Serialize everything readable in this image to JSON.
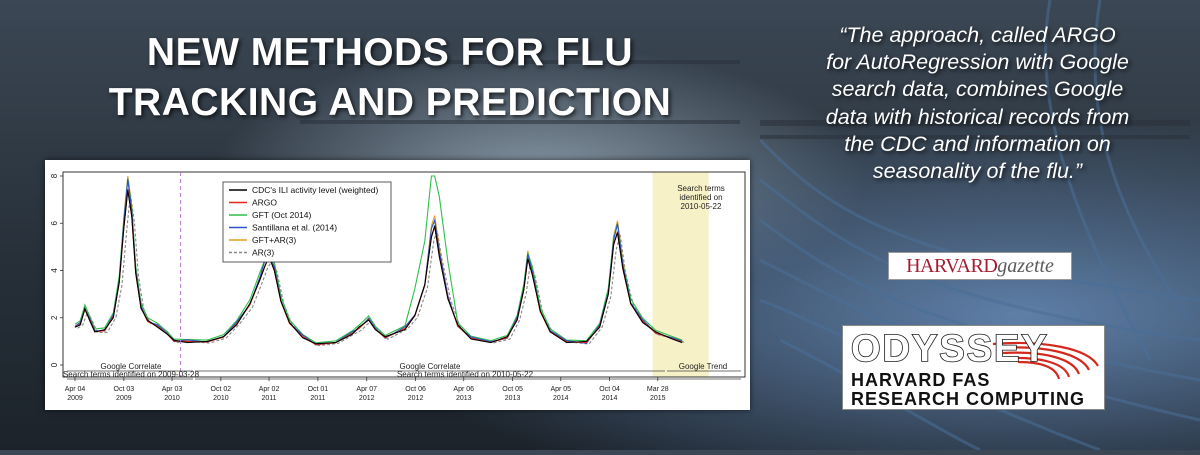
{
  "headline": [
    "NEW METHODS FOR FLU",
    "TRACKING AND PREDICTION"
  ],
  "quote": [
    "“The approach, called ARGO",
    "for AutoRegression with Google",
    "search data, combines Google",
    "data with historical records from",
    "the CDC and information on",
    "seasonality of the flu.”"
  ],
  "logos": {
    "harvard_gazette": {
      "part1": "HARVARD",
      "part2": "gazette"
    },
    "odyssey": {
      "title": "ODYSSEY",
      "line1": "HARVARD FAS",
      "line2": "RESEARCH COMPUTING"
    }
  },
  "colors": {
    "cdc": "#000000",
    "argo": "#e8231b",
    "gft": "#2fbf4a",
    "santillana": "#2a55c8",
    "gftar": "#e0a020",
    "ar": "#888888",
    "highlight": "#f7f1c8",
    "divider": "#b07ad0"
  },
  "chart_data": {
    "type": "line",
    "ylim": [
      0,
      8
    ],
    "yticks": [
      "0",
      "2",
      "4",
      "6",
      "8"
    ],
    "x_ticks": [
      {
        "label1": "Apr 04",
        "label2": "2009",
        "pos": 0.0
      },
      {
        "label1": "Oct 03",
        "label2": "2009",
        "pos": 0.074
      },
      {
        "label1": "Apr 03",
        "label2": "2010",
        "pos": 0.147
      },
      {
        "label1": "Oct 02",
        "label2": "2010",
        "pos": 0.221
      },
      {
        "label1": "Apr 02",
        "label2": "2011",
        "pos": 0.294
      },
      {
        "label1": "Oct 01",
        "label2": "2011",
        "pos": 0.368
      },
      {
        "label1": "Apr 07",
        "label2": "2012",
        "pos": 0.442
      },
      {
        "label1": "Oct 06",
        "label2": "2012",
        "pos": 0.516
      },
      {
        "label1": "Apr 06",
        "label2": "2013",
        "pos": 0.589
      },
      {
        "label1": "Oct 05",
        "label2": "2013",
        "pos": 0.663
      },
      {
        "label1": "Apr 05",
        "label2": "2014",
        "pos": 0.736
      },
      {
        "label1": "Oct 04",
        "label2": "2014",
        "pos": 0.81
      },
      {
        "label1": "Mar 28",
        "label2": "2015",
        "pos": 0.883
      }
    ],
    "legend": [
      "CDC's ILI activity level (weighted)",
      "ARGO",
      "GFT (Oct 2014)",
      "Santillana et al. (2014)",
      "GFT+AR(3)",
      "AR(3)"
    ],
    "annotations": {
      "search_box": [
        "Search terms",
        "identified on",
        "2010-05-22"
      ],
      "correlate_1": "Google Correlate",
      "correlate_2": "Google Correlate",
      "trend": "Google Trend",
      "terms_1": "Search terms identified on 2009-03-28",
      "terms_2": "Search terms identified on 2010-05-22"
    },
    "cdc_series": [
      [
        0.0,
        1.6
      ],
      [
        0.008,
        1.7
      ],
      [
        0.015,
        2.4
      ],
      [
        0.022,
        1.9
      ],
      [
        0.03,
        1.4
      ],
      [
        0.045,
        1.5
      ],
      [
        0.058,
        2.0
      ],
      [
        0.067,
        3.5
      ],
      [
        0.074,
        5.8
      ],
      [
        0.08,
        7.4
      ],
      [
        0.086,
        6.3
      ],
      [
        0.092,
        3.9
      ],
      [
        0.1,
        2.4
      ],
      [
        0.11,
        1.9
      ],
      [
        0.125,
        1.6
      ],
      [
        0.14,
        1.3
      ],
      [
        0.15,
        1.05
      ],
      [
        0.17,
        0.95
      ],
      [
        0.2,
        1.0
      ],
      [
        0.225,
        1.2
      ],
      [
        0.245,
        1.7
      ],
      [
        0.265,
        2.6
      ],
      [
        0.28,
        3.6
      ],
      [
        0.288,
        4.2
      ],
      [
        0.294,
        4.6
      ],
      [
        0.302,
        4.0
      ],
      [
        0.312,
        2.7
      ],
      [
        0.325,
        1.8
      ],
      [
        0.345,
        1.15
      ],
      [
        0.365,
        0.9
      ],
      [
        0.395,
        0.95
      ],
      [
        0.42,
        1.3
      ],
      [
        0.43,
        1.6
      ],
      [
        0.445,
        1.9
      ],
      [
        0.455,
        1.5
      ],
      [
        0.47,
        1.2
      ],
      [
        0.5,
        1.5
      ],
      [
        0.515,
        2.1
      ],
      [
        0.53,
        3.4
      ],
      [
        0.54,
        5.4
      ],
      [
        0.545,
        5.9
      ],
      [
        0.552,
        4.6
      ],
      [
        0.565,
        2.8
      ],
      [
        0.58,
        1.7
      ],
      [
        0.6,
        1.1
      ],
      [
        0.63,
        0.95
      ],
      [
        0.655,
        1.2
      ],
      [
        0.67,
        1.9
      ],
      [
        0.68,
        3.2
      ],
      [
        0.686,
        4.5
      ],
      [
        0.693,
        3.8
      ],
      [
        0.705,
        2.3
      ],
      [
        0.72,
        1.4
      ],
      [
        0.745,
        0.95
      ],
      [
        0.775,
        1.0
      ],
      [
        0.795,
        1.6
      ],
      [
        0.808,
        3.0
      ],
      [
        0.816,
        5.1
      ],
      [
        0.822,
        5.6
      ],
      [
        0.83,
        4.1
      ],
      [
        0.842,
        2.6
      ],
      [
        0.86,
        1.8
      ],
      [
        0.88,
        1.4
      ],
      [
        0.905,
        1.1
      ],
      [
        0.92,
        0.95
      ]
    ]
  }
}
